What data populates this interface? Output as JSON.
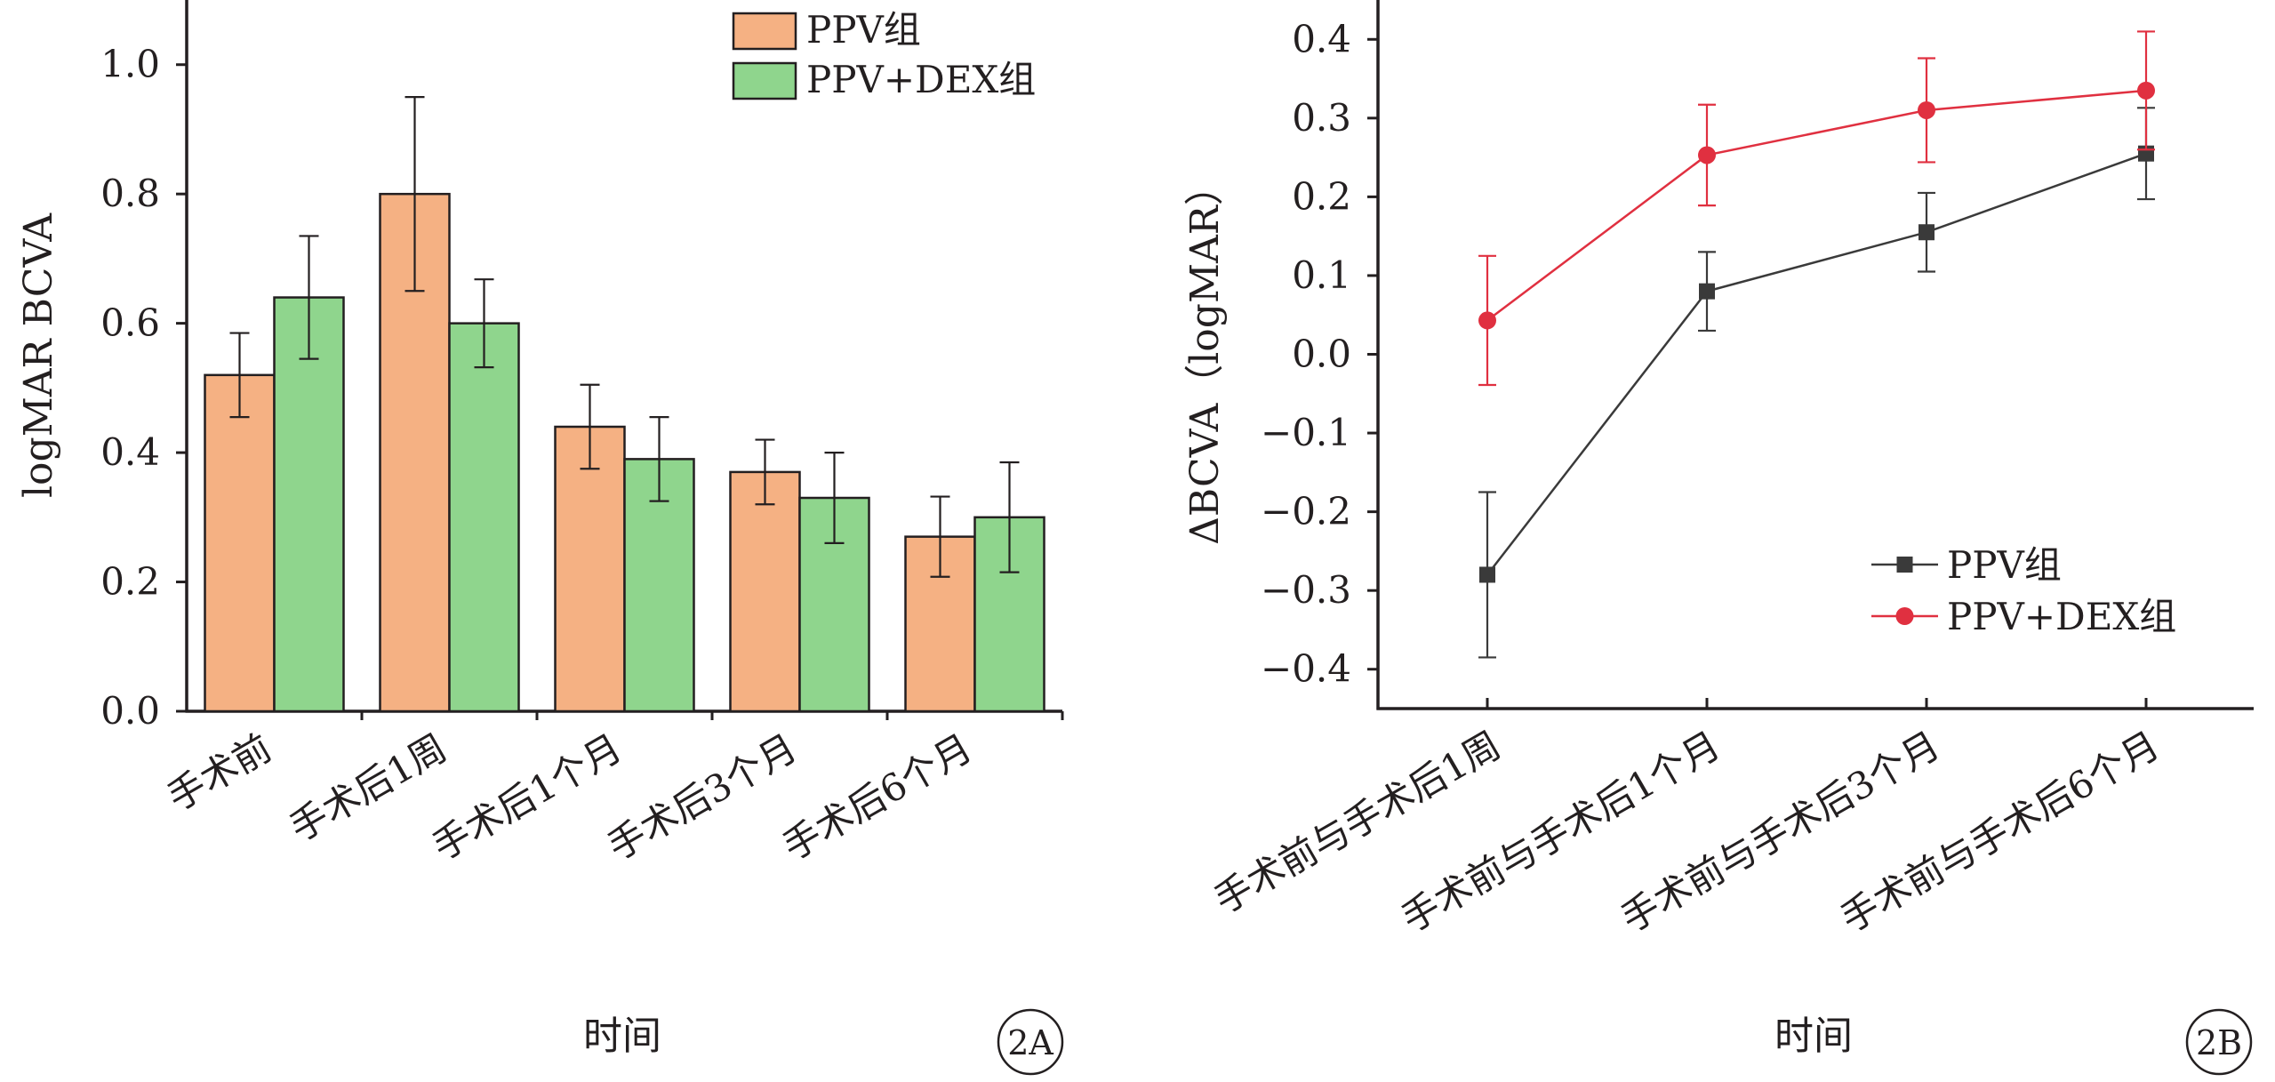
{
  "chart_data": [
    {
      "panel_label": "2A",
      "type": "bar",
      "title": "",
      "xlabel": "时间",
      "ylabel": "logMAR BCVA",
      "ylim": [
        0,
        1.1
      ],
      "yticks": [
        "0.0",
        "0.2",
        "0.4",
        "0.6",
        "0.8",
        "1.0"
      ],
      "categories": [
        "手术前",
        "手术后1周",
        "手术后1个月",
        "手术后3个月",
        "手术后6个月"
      ],
      "series": [
        {
          "name": "PPV组",
          "color": "#f5b183",
          "values": [
            0.52,
            0.8,
            0.44,
            0.37,
            0.27
          ],
          "errors": [
            0.065,
            0.15,
            0.065,
            0.05,
            0.062
          ]
        },
        {
          "name": "PPV+DEX组",
          "color": "#8fd58d",
          "values": [
            0.64,
            0.6,
            0.39,
            0.33,
            0.3
          ],
          "errors": [
            0.095,
            0.068,
            0.065,
            0.07,
            0.085
          ]
        }
      ],
      "legend_position": "top-right",
      "grid": false
    },
    {
      "panel_label": "2B",
      "type": "line",
      "title": "",
      "xlabel": "时间",
      "ylabel": "ΔBCVA（logMAR）",
      "ylim": [
        -0.45,
        0.45
      ],
      "yticks": [
        "−0.4",
        "−0.3",
        "−0.2",
        "−0.1",
        "0.0",
        "0.1",
        "0.2",
        "0.3",
        "0.4"
      ],
      "categories": [
        "手术前与手术后1周",
        "手术前与手术后1个月",
        "手术前与手术后3个月",
        "手术前与手术后6个月"
      ],
      "series": [
        {
          "name": "PPV组",
          "color": "#3a3a3a",
          "marker": "square",
          "values": [
            -0.28,
            0.08,
            0.155,
            0.255
          ],
          "errors": [
            0.105,
            0.05,
            0.05,
            0.058
          ]
        },
        {
          "name": "PPV+DEX组",
          "color": "#e03040",
          "marker": "circle",
          "values": [
            0.043,
            0.253,
            0.31,
            0.335
          ],
          "errors": [
            0.082,
            0.064,
            0.066,
            0.075
          ]
        }
      ],
      "legend_position": "bottom-right",
      "grid": false
    }
  ]
}
